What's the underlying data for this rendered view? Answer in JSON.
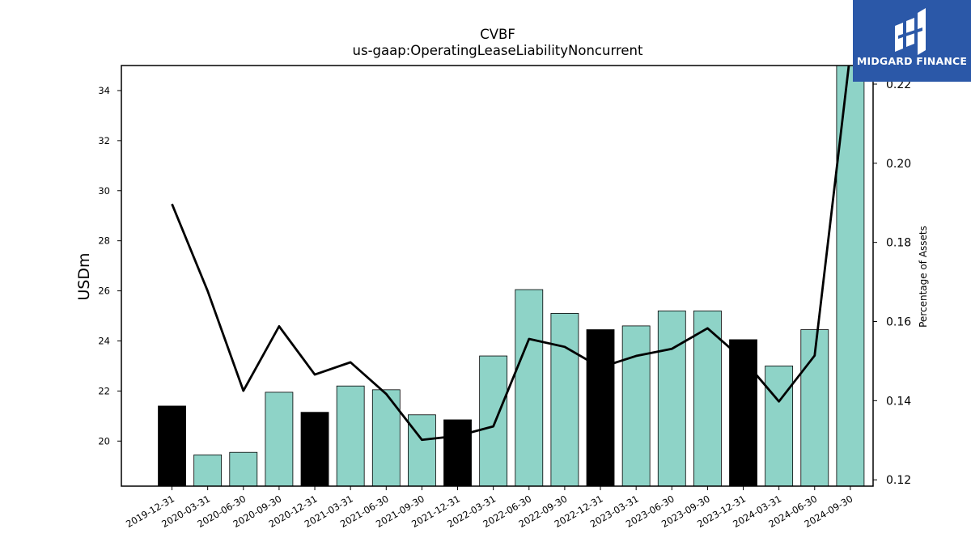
{
  "chart_data": {
    "type": "bar",
    "title": "CVBF",
    "subtitle": "us-gaap:OperatingLeaseLiabilityNoncurrent",
    "ylabel": "USDm",
    "y2label": "Percentage of Assets",
    "categories": [
      "2019-12-31",
      "2020-03-31",
      "2020-06-30",
      "2020-09-30",
      "2020-12-31",
      "2021-03-31",
      "2021-06-30",
      "2021-09-30",
      "2021-12-31",
      "2022-03-31",
      "2022-06-30",
      "2022-09-30",
      "2022-12-31",
      "2023-03-31",
      "2023-06-30",
      "2023-09-30",
      "2023-12-31",
      "2024-03-31",
      "2024-06-30",
      "2024-09-30"
    ],
    "series": [
      {
        "kind": "bar",
        "values": [
          21.4,
          19.45,
          19.55,
          21.95,
          21.15,
          22.2,
          22.05,
          21.05,
          20.85,
          23.4,
          26.05,
          25.1,
          24.45,
          24.6,
          25.2,
          25.2,
          24.05,
          23.0,
          24.45,
          35.0
        ],
        "highlight": [
          true,
          false,
          false,
          false,
          true,
          false,
          false,
          false,
          true,
          false,
          false,
          false,
          true,
          false,
          false,
          false,
          true,
          false,
          false,
          false
        ]
      },
      {
        "kind": "line",
        "axis": "right",
        "values": [
          0.1897,
          0.1677,
          0.1425,
          0.1588,
          0.1466,
          0.1497,
          0.1417,
          0.1301,
          0.1311,
          0.1335,
          0.1556,
          0.1536,
          0.1484,
          0.1513,
          0.1531,
          0.1583,
          0.1504,
          0.1398,
          0.1514,
          0.228
        ]
      }
    ],
    "ylim": [
      18.2,
      35.0
    ],
    "yticks": [
      20,
      22,
      24,
      26,
      28,
      30,
      32,
      34
    ],
    "y2lim": [
      0.1184,
      0.2247
    ],
    "y2ticks": [
      "0.12",
      "0.14",
      "0.16",
      "0.18",
      "0.20",
      "0.22"
    ],
    "colors": {
      "bar": "#8ed3c7",
      "bar_highlight": "#000000",
      "line": "#000000"
    },
    "grid": false
  },
  "logo": {
    "text": "MIDGARD FINANCE",
    "background": "#2b58a8"
  }
}
